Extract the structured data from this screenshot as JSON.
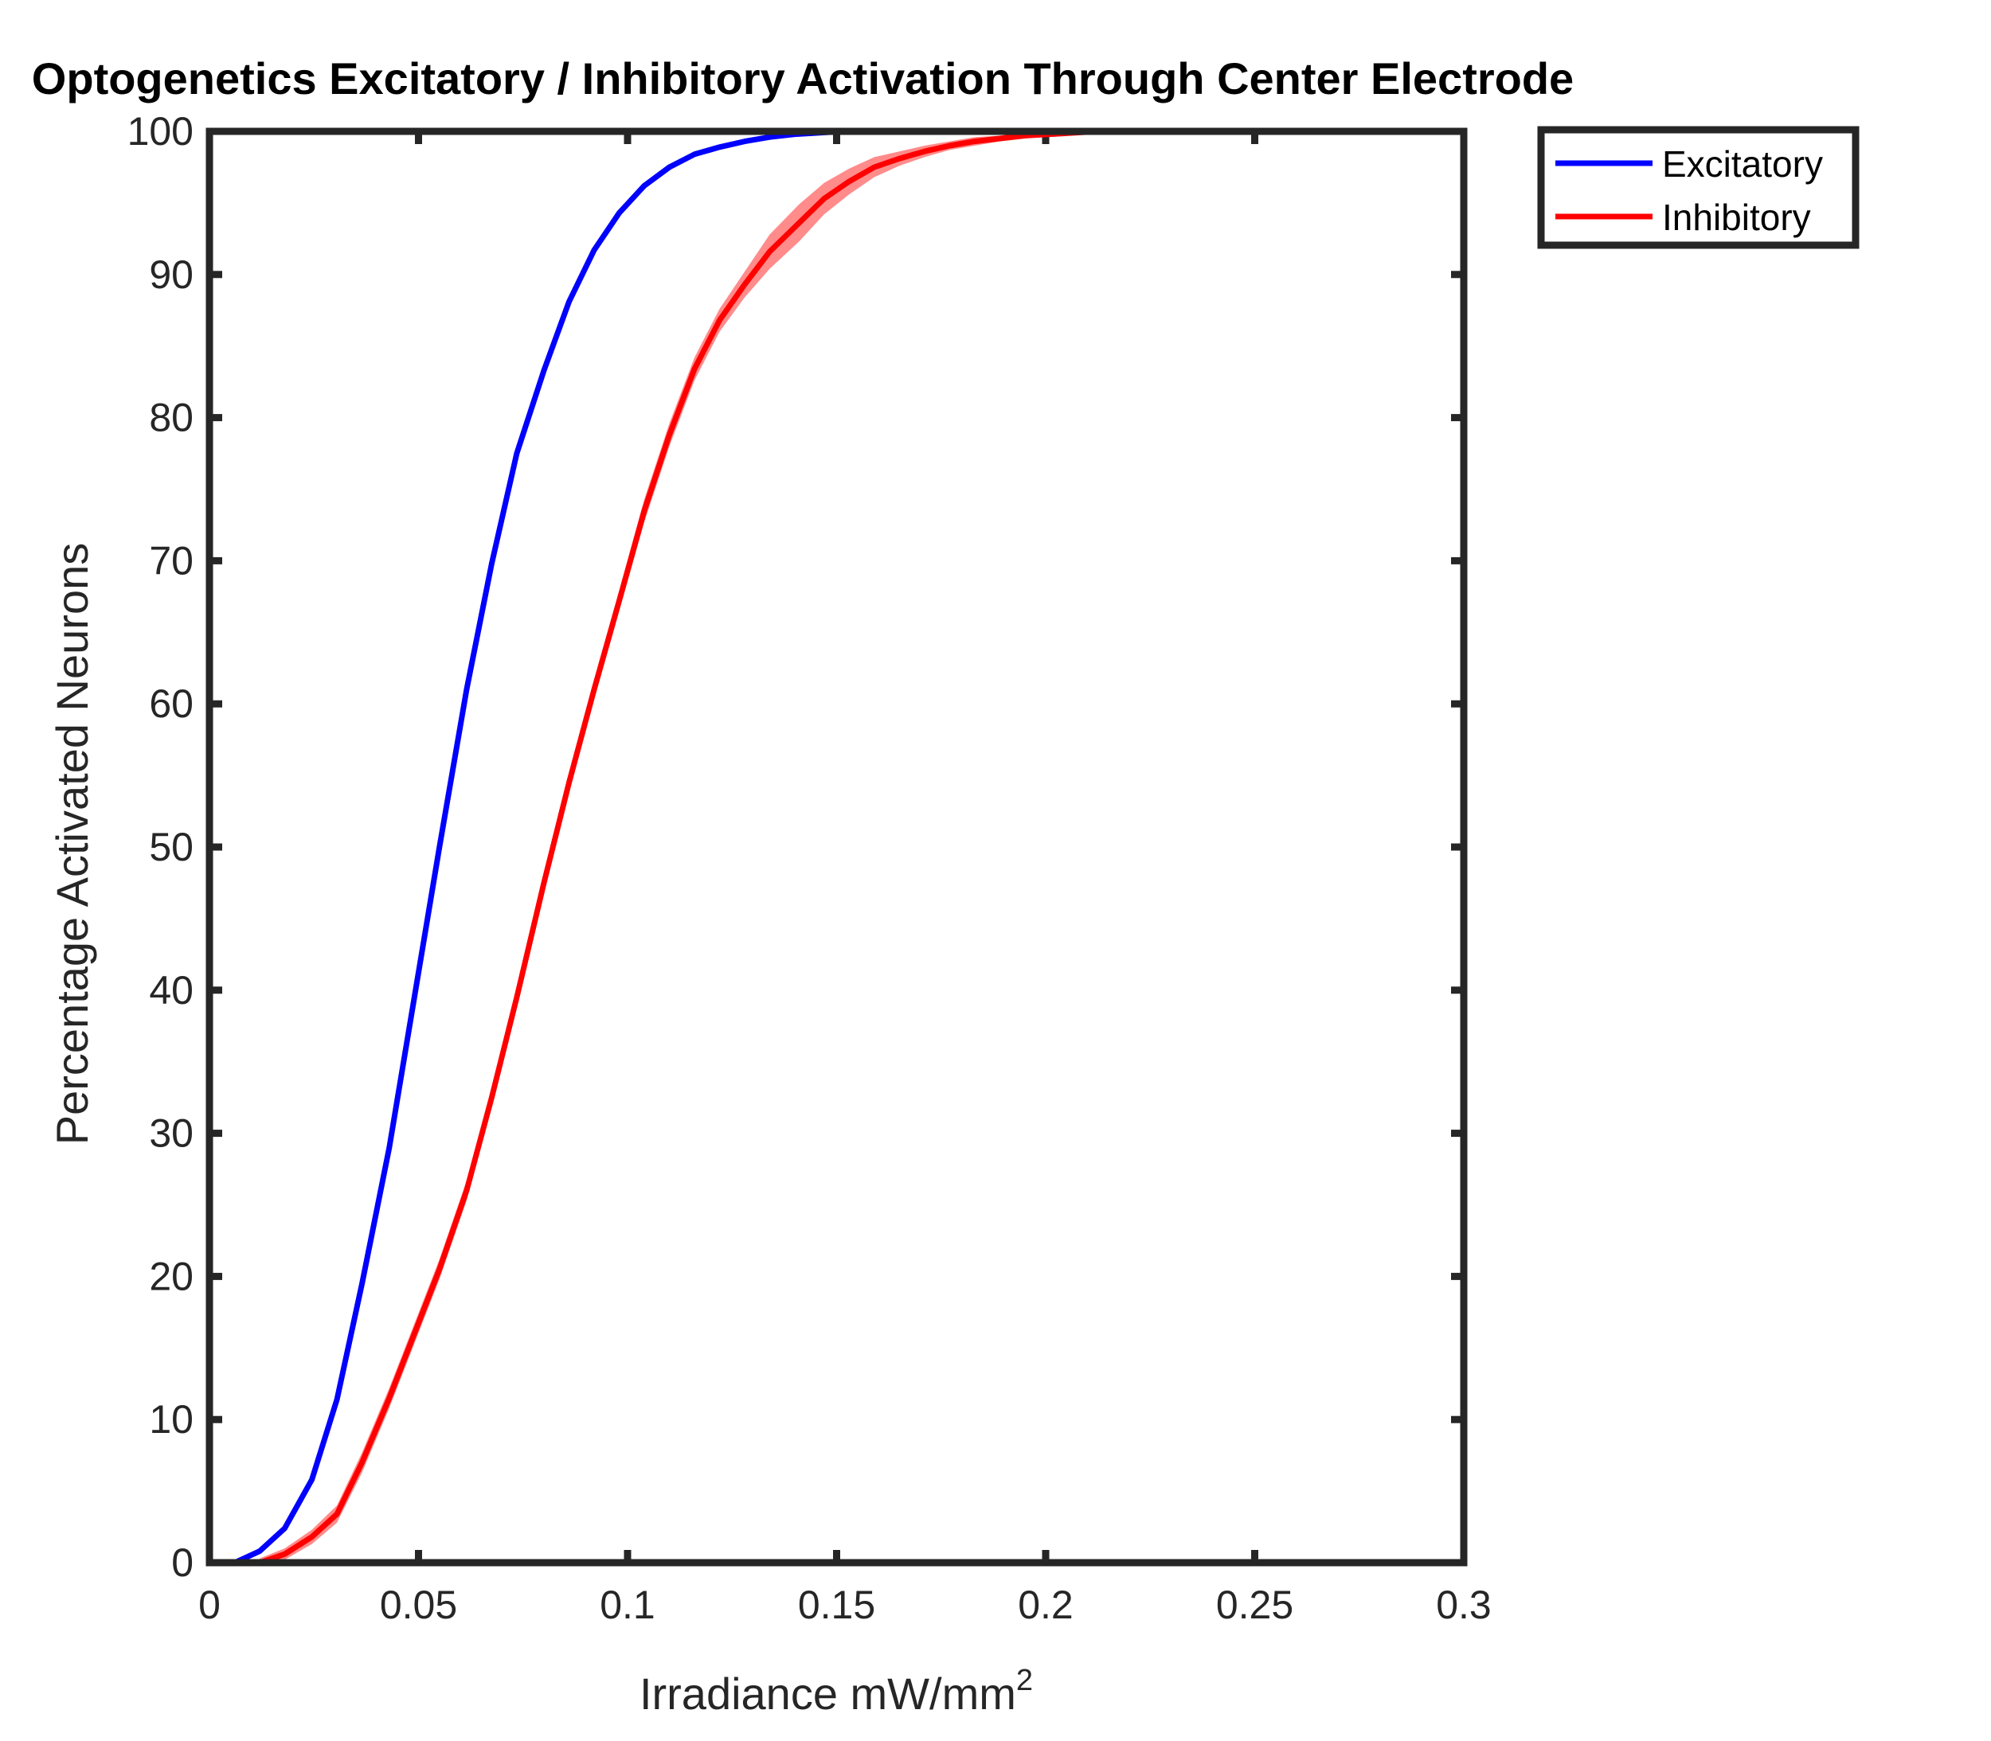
{
  "chart_data": {
    "type": "line",
    "title": "Optogenetics Excitatory / Inhibitory Activation Through Center Electrode",
    "xlabel": "Irradiance mW/mm",
    "xlabel_superscript": "2",
    "ylabel": "Percentage Activated Neurons",
    "xlim": [
      0,
      0.3
    ],
    "ylim": [
      0,
      100
    ],
    "xticks": [
      "0",
      "0.05",
      "0.1",
      "0.15",
      "0.2",
      "0.25",
      "0.3"
    ],
    "yticks": [
      "0",
      "10",
      "20",
      "30",
      "40",
      "50",
      "60",
      "70",
      "80",
      "90",
      "100"
    ],
    "grid": false,
    "legend_position": "outside top-right",
    "series": [
      {
        "name": "Excitatory",
        "color": "#0000ff",
        "x": [
          0.006,
          0.012,
          0.018,
          0.0245,
          0.0305,
          0.0365,
          0.043,
          0.049,
          0.055,
          0.0615,
          0.0675,
          0.0735,
          0.08,
          0.086,
          0.092,
          0.098,
          0.104,
          0.11,
          0.116,
          0.122,
          0.128,
          0.134,
          0.14,
          0.146,
          0.152,
          0.16
        ],
        "y": [
          0.0,
          0.8,
          2.4,
          5.8,
          11.4,
          19.5,
          29.0,
          39.5,
          50.0,
          61.0,
          69.8,
          77.5,
          83.3,
          88.1,
          91.7,
          94.3,
          96.2,
          97.5,
          98.4,
          98.9,
          99.3,
          99.6,
          99.8,
          99.9,
          100.0,
          100.0
        ]
      },
      {
        "name": "Inhibitory",
        "color": "#ff0000",
        "band_color": "#ff6464",
        "x": [
          0.012,
          0.018,
          0.0245,
          0.0305,
          0.0365,
          0.043,
          0.049,
          0.055,
          0.0615,
          0.0675,
          0.0735,
          0.08,
          0.086,
          0.092,
          0.098,
          0.104,
          0.11,
          0.116,
          0.122,
          0.128,
          0.134,
          0.141,
          0.147,
          0.153,
          0.159,
          0.165,
          0.171,
          0.177,
          0.183,
          0.189,
          0.195,
          0.201,
          0.207,
          0.213,
          0.22,
          0.24
        ],
        "y": [
          0.0,
          0.6,
          1.8,
          3.4,
          7.0,
          11.5,
          16.0,
          20.5,
          26.0,
          32.5,
          39.5,
          47.5,
          54.5,
          61.0,
          67.2,
          73.5,
          78.8,
          83.4,
          86.8,
          89.3,
          91.6,
          93.6,
          95.3,
          96.5,
          97.5,
          98.1,
          98.6,
          99.0,
          99.3,
          99.5,
          99.7,
          99.8,
          99.9,
          100.0,
          100.0,
          100.0
        ],
        "band": [
          0.3,
          0.4,
          0.5,
          0.6,
          0.7,
          0.7,
          0.7,
          0.7,
          0.7,
          0.7,
          0.7,
          0.7,
          0.7,
          0.7,
          0.7,
          0.8,
          0.8,
          0.8,
          0.8,
          0.9,
          1.2,
          1.3,
          1.1,
          0.9,
          0.7,
          0.5,
          0.4,
          0.3,
          0.3,
          0.2,
          0.2,
          0.1,
          0.1,
          0.1,
          0.0,
          0.0
        ]
      }
    ]
  }
}
